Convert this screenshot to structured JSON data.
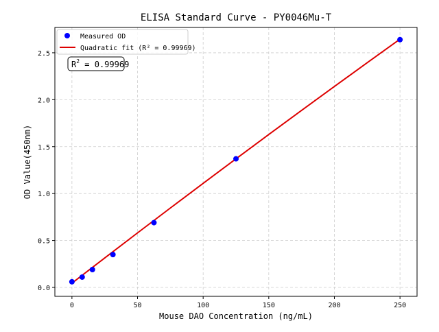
{
  "chart_data": {
    "type": "scatter",
    "title": "ELISA Standard Curve - PY0046Mu-T",
    "xlabel": "Mouse DAO Concentration (ng/mL)",
    "ylabel": "OD Value(450nm)",
    "xlim": [
      -13,
      263
    ],
    "ylim": [
      -0.095,
      2.77
    ],
    "xticks": [
      0,
      50,
      100,
      150,
      200,
      250
    ],
    "yticks": [
      0.0,
      0.5,
      1.0,
      1.5,
      2.0,
      2.5
    ],
    "ytick_labels": [
      "0.0",
      "0.5",
      "1.0",
      "1.5",
      "2.0",
      "2.5"
    ],
    "grid": true,
    "legend_placement": "top-left",
    "series": [
      {
        "name": "Measured OD",
        "kind": "scatter",
        "color": "#0000ff",
        "x": [
          0,
          7.8,
          15.6,
          31.25,
          62.5,
          125,
          250
        ],
        "y": [
          0.06,
          0.11,
          0.19,
          0.35,
          0.69,
          1.37,
          2.64
        ]
      },
      {
        "name": "Quadratic fit (R² = 0.99969)",
        "kind": "line",
        "color": "#dd0000",
        "x": [
          0,
          25,
          50,
          75,
          100,
          125,
          150,
          175,
          200,
          225,
          250
        ],
        "y": [
          0.045,
          0.314,
          0.581,
          0.846,
          1.109,
          1.37,
          1.629,
          1.886,
          2.141,
          2.394,
          2.645
        ]
      }
    ],
    "annotation": {
      "prefix": "R",
      "sup": "2",
      "suffix": " = 0.99969"
    }
  }
}
